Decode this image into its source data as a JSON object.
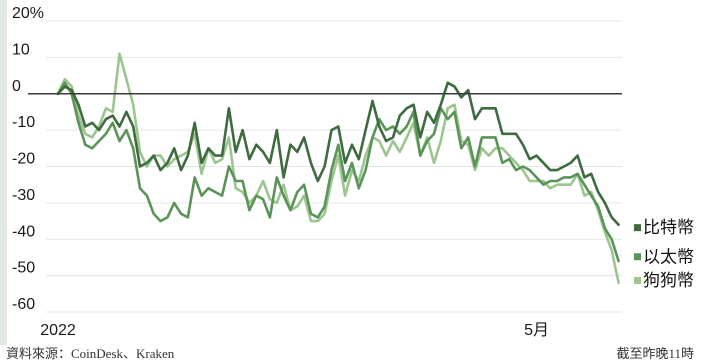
{
  "chart_data": {
    "type": "line",
    "yTickLabels": [
      "20%",
      "10",
      "0",
      "-10",
      "-20",
      "-30",
      "-40",
      "-50",
      "-60"
    ],
    "yTickValues": [
      20,
      10,
      0,
      -10,
      -20,
      -30,
      -40,
      -50,
      -60
    ],
    "ylim": [
      -60,
      20
    ],
    "xlim": [
      0,
      165
    ],
    "xTicks": [
      {
        "x": 0,
        "label": "2022"
      },
      {
        "x": 140,
        "label": "5月"
      }
    ],
    "baseline": 0,
    "legend_position": "right",
    "series": [
      {
        "name": "比特幣",
        "color": "#3e6b3f",
        "x": [
          0,
          2,
          4,
          6,
          8,
          10,
          12,
          14,
          16,
          18,
          20,
          22,
          24,
          26,
          28,
          30,
          32,
          34,
          36,
          38,
          40,
          42,
          44,
          46,
          48,
          50,
          52,
          54,
          56,
          58,
          60,
          62,
          64,
          66,
          68,
          70,
          72,
          74,
          76,
          78,
          80,
          82,
          84,
          86,
          88,
          90,
          92,
          94,
          96,
          98,
          100,
          102,
          104,
          106,
          108,
          110,
          112,
          114,
          116,
          118,
          120,
          122,
          124,
          126,
          128,
          130,
          132,
          134,
          136,
          138,
          140,
          142,
          144,
          146,
          148,
          150,
          152,
          154,
          156,
          158,
          160,
          162,
          164
        ],
        "values": [
          0,
          2,
          1,
          -3,
          -9,
          -8,
          -10,
          -7,
          -6,
          -9,
          -5,
          -9,
          -20,
          -19,
          -17,
          -21,
          -19,
          -15,
          -21,
          -17,
          -8,
          -19,
          -15,
          -17,
          -17,
          -4,
          -16,
          -10,
          -18,
          -14,
          -16,
          -19,
          -10,
          -23,
          -14,
          -16,
          -12,
          -19,
          -24,
          -20,
          -10,
          -9,
          -19,
          -14,
          -18,
          -10,
          -2,
          -9,
          -13,
          -12,
          -6,
          -4,
          -3,
          -12,
          -5,
          -8,
          -3,
          3,
          2,
          -1,
          1,
          -7,
          -4,
          -4,
          -4,
          -11,
          -11,
          -11,
          -14,
          -18,
          -17,
          -19,
          -21,
          -21,
          -20,
          -19,
          -17,
          -23,
          -22,
          -27,
          -30,
          -34,
          -36
        ]
      },
      {
        "name": "以太幣",
        "color": "#5a9458",
        "x": [
          0,
          2,
          4,
          6,
          8,
          10,
          12,
          14,
          16,
          18,
          20,
          22,
          24,
          26,
          28,
          30,
          32,
          34,
          36,
          38,
          40,
          42,
          44,
          46,
          48,
          50,
          52,
          54,
          56,
          58,
          60,
          62,
          64,
          66,
          68,
          70,
          72,
          74,
          76,
          78,
          80,
          82,
          84,
          86,
          88,
          90,
          92,
          94,
          96,
          98,
          100,
          102,
          104,
          106,
          108,
          110,
          112,
          114,
          116,
          118,
          120,
          122,
          124,
          126,
          128,
          130,
          132,
          134,
          136,
          138,
          140,
          142,
          144,
          146,
          148,
          150,
          152,
          154,
          156,
          158,
          160,
          162,
          164
        ],
        "values": [
          0,
          3,
          0,
          -8,
          -14,
          -15,
          -13,
          -11,
          -8,
          -13,
          -10,
          -15,
          -26,
          -28,
          -33,
          -35,
          -34,
          -30,
          -33,
          -34,
          -23,
          -28,
          -26,
          -27,
          -28,
          -20,
          -24,
          -24,
          -32,
          -28,
          -29,
          -34,
          -23,
          -28,
          -32,
          -27,
          -25,
          -33,
          -34,
          -31,
          -21,
          -14,
          -24,
          -19,
          -26,
          -21,
          -12,
          -7,
          -10,
          -9,
          -11,
          -9,
          -5,
          -17,
          -13,
          -11,
          -4,
          -7,
          -5,
          -15,
          -12,
          -20,
          -12,
          -12,
          -12,
          -19,
          -18,
          -21,
          -20,
          -21,
          -23,
          -25,
          -24,
          -24,
          -23,
          -23,
          -22,
          -25,
          -28,
          -31,
          -37,
          -40,
          -46
        ]
      },
      {
        "name": "狗狗幣",
        "color": "#9cc590",
        "x": [
          0,
          2,
          4,
          6,
          8,
          10,
          12,
          14,
          16,
          18,
          20,
          22,
          24,
          26,
          28,
          30,
          32,
          34,
          36,
          38,
          40,
          42,
          44,
          46,
          48,
          50,
          52,
          54,
          56,
          58,
          60,
          62,
          64,
          66,
          68,
          70,
          72,
          74,
          76,
          78,
          80,
          82,
          84,
          86,
          88,
          90,
          92,
          94,
          96,
          98,
          100,
          102,
          104,
          106,
          108,
          110,
          112,
          114,
          116,
          118,
          120,
          122,
          124,
          126,
          128,
          130,
          132,
          134,
          136,
          138,
          140,
          142,
          144,
          146,
          148,
          150,
          152,
          154,
          156,
          158,
          160,
          162,
          164
        ],
        "values": [
          0,
          4,
          2,
          -6,
          -11,
          -12,
          -9,
          -4,
          -5,
          11,
          4,
          -3,
          -16,
          -20,
          -17,
          -17,
          -20,
          -18,
          -17,
          -16,
          -11,
          -22,
          -15,
          -19,
          -18,
          -12,
          -26,
          -27,
          -30,
          -28,
          -24,
          -29,
          -30,
          -25,
          -32,
          -31,
          -28,
          -35,
          -35,
          -33,
          -24,
          -17,
          -28,
          -21,
          -24,
          -17,
          -12,
          -13,
          -17,
          -13,
          -16,
          -12,
          -8,
          -17,
          -12,
          -19,
          -13,
          -4,
          -3,
          -13,
          -14,
          -21,
          -15,
          -17,
          -15,
          -15,
          -17,
          -19,
          -21,
          -24,
          -24,
          -24,
          -26,
          -25,
          -25,
          -25,
          -22,
          -28,
          -27,
          -32,
          -38,
          -43,
          -52
        ]
      }
    ]
  },
  "source_text": "資料來源：CoinDesk、Kraken",
  "note_text": "截至昨晚11時"
}
